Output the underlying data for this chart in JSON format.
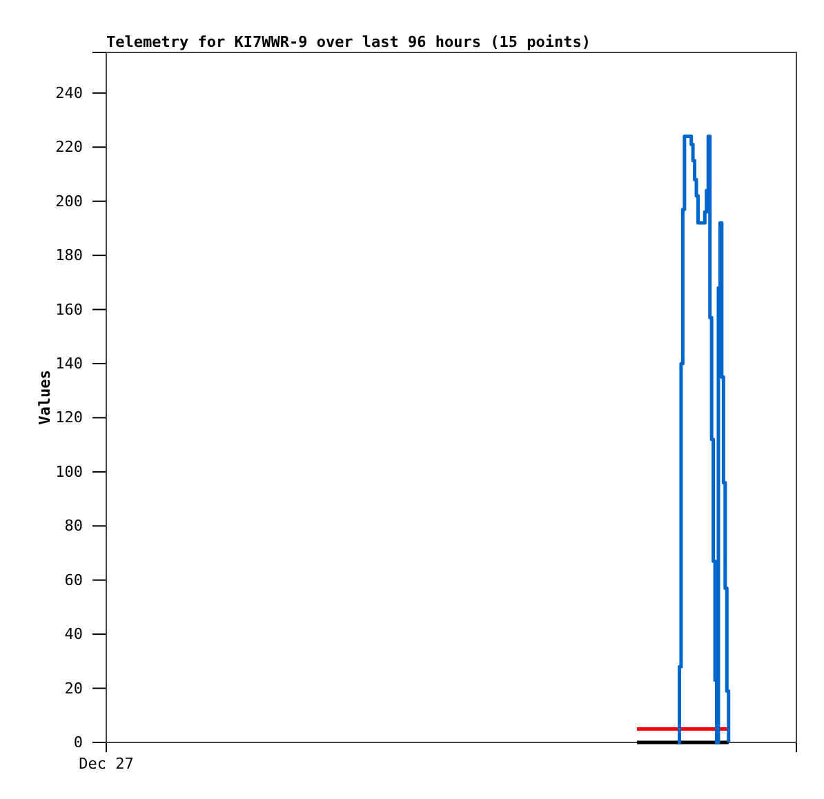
{
  "chart_data": {
    "type": "step",
    "title": "Telemetry for KI7WWR-9 over last 96 hours (15 points)",
    "ylabel": "Values",
    "categories": [
      "Dec 27",
      null,
      null,
      null,
      null,
      null,
      null,
      null,
      null,
      null,
      null,
      null,
      null,
      null,
      null,
      null,
      null,
      null,
      null,
      null,
      null,
      null,
      null,
      null,
      null,
      null,
      null,
      null,
      null,
      null,
      null,
      null,
      null,
      null,
      null,
      null,
      null,
      null,
      null,
      null,
      null,
      null,
      null,
      null,
      null,
      null,
      null,
      null,
      null,
      null,
      null,
      null,
      null,
      null,
      null,
      null,
      null,
      null,
      null,
      null,
      null,
      null,
      null,
      null,
      null,
      null,
      null,
      null,
      null,
      null,
      null,
      null,
      null,
      null,
      null,
      null,
      null,
      null,
      null,
      null,
      null,
      null,
      null,
      null,
      null,
      null,
      null,
      null,
      null,
      null,
      null,
      null,
      null,
      null,
      null,
      null,
      null,
      null,
      null,
      null,
      null,
      null,
      null,
      null,
      null,
      null,
      null,
      null,
      null,
      null,
      null,
      null,
      null,
      null,
      null,
      null,
      null,
      null,
      null,
      null,
      null,
      null,
      null,
      null,
      null,
      null,
      null,
      null,
      null,
      null,
      null,
      null,
      null,
      null,
      null,
      null,
      null,
      null,
      null,
      null,
      null,
      null,
      null,
      null,
      null,
      null,
      null,
      null,
      null,
      null,
      null,
      null,
      null,
      null,
      null,
      null,
      null,
      null,
      null,
      null,
      null,
      null,
      null,
      null,
      null,
      null,
      null,
      null,
      null,
      null,
      null,
      null,
      null,
      null,
      null,
      null,
      null,
      null,
      null,
      null,
      null,
      null,
      null,
      null,
      null,
      null,
      null,
      null,
      null,
      null,
      null,
      null,
      null,
      null,
      null,
      null,
      null,
      null,
      null,
      null,
      null,
      null,
      null,
      null,
      null,
      null,
      null,
      null,
      null,
      null,
      null,
      null,
      null,
      null,
      null,
      null,
      null,
      null,
      null,
      null,
      null,
      null,
      null,
      null,
      null,
      null,
      null,
      null,
      null,
      null,
      null,
      null,
      null,
      null,
      null,
      null,
      null,
      null,
      null,
      null,
      null,
      null,
      null,
      null,
      null,
      null,
      null,
      null,
      null,
      null,
      null,
      null,
      null,
      null,
      null,
      null,
      null,
      null,
      null,
      null,
      null,
      null,
      null,
      null,
      null,
      null,
      null,
      null,
      null,
      null,
      null,
      null,
      null,
      null,
      null,
      null,
      null,
      null,
      null,
      null,
      null,
      null,
      null,
      null,
      null,
      null,
      null,
      null,
      null,
      null,
      null,
      null,
      null,
      null,
      null,
      null,
      null,
      null,
      null,
      null,
      null,
      null,
      null,
      null,
      null,
      null,
      null,
      null,
      null,
      null,
      null,
      null,
      null,
      null,
      null,
      null,
      null,
      null,
      null,
      null,
      null,
      null,
      null,
      null,
      null,
      null,
      null,
      null,
      null,
      null,
      null,
      null,
      null,
      null,
      null,
      null,
      null,
      null,
      null,
      null,
      null,
      null,
      null,
      null,
      null,
      null,
      null,
      null,
      null,
      null,
      null,
      null,
      null,
      null,
      null,
      null,
      null,
      null,
      null,
      null,
      null,
      null,
      null,
      null,
      null,
      null,
      null,
      null,
      null,
      null,
      null,
      null,
      null,
      null,
      null,
      null,
      null,
      null,
      null,
      null,
      null,
      null,
      null,
      null,
      null,
      null,
      null,
      null,
      null,
      null,
      null,
      null,
      null,
      null,
      null,
      null,
      null,
      null,
      null,
      null,
      null,
      null,
      null,
      null,
      null,
      null,
      null,
      null
    ],
    "ylim": [
      0,
      255
    ],
    "yticks": [
      0,
      20,
      40,
      60,
      80,
      100,
      120,
      140,
      160,
      180,
      200,
      220,
      240
    ],
    "grid": false,
    "series": [
      {
        "type": "line",
        "color": "#000000",
        "values": [
          null,
          null,
          null,
          null,
          null,
          null,
          null,
          null,
          null,
          null,
          null,
          null,
          null,
          null,
          null,
          null,
          null,
          null,
          null,
          null,
          null,
          null,
          null,
          null,
          null,
          null,
          null,
          null,
          null,
          null,
          null,
          null,
          null,
          null,
          null,
          null,
          null,
          null,
          null,
          null,
          null,
          null,
          null,
          null,
          null,
          null,
          null,
          null,
          null,
          null,
          null,
          null,
          null,
          null,
          null,
          null,
          null,
          null,
          null,
          null,
          null,
          null,
          null,
          null,
          null,
          null,
          null,
          null,
          null,
          null,
          null,
          null,
          null,
          null,
          null,
          null,
          null,
          null,
          null,
          null,
          null,
          null,
          null,
          null,
          null,
          null,
          null,
          null,
          null,
          null,
          null,
          null,
          null,
          null,
          null,
          null,
          null,
          null,
          null,
          null,
          null,
          null,
          null,
          null,
          null,
          null,
          null,
          null,
          null,
          null,
          null,
          null,
          null,
          null,
          null,
          null,
          null,
          null,
          null,
          null,
          null,
          null,
          null,
          null,
          null,
          null,
          null,
          null,
          null,
          null,
          null,
          null,
          null,
          null,
          null,
          null,
          null,
          null,
          null,
          null,
          null,
          null,
          null,
          null,
          null,
          null,
          null,
          null,
          null,
          null,
          null,
          null,
          null,
          null,
          null,
          null,
          null,
          null,
          null,
          null,
          null,
          null,
          null,
          null,
          null,
          null,
          null,
          null,
          null,
          null,
          null,
          null,
          null,
          null,
          null,
          null,
          null,
          null,
          null,
          null,
          null,
          null,
          null,
          null,
          null,
          null,
          null,
          null,
          null,
          null,
          null,
          null,
          null,
          null,
          null,
          null,
          null,
          null,
          null,
          null,
          null,
          null,
          null,
          null,
          null,
          null,
          null,
          null,
          null,
          null,
          null,
          null,
          null,
          null,
          null,
          null,
          null,
          null,
          null,
          null,
          null,
          null,
          null,
          null,
          null,
          null,
          null,
          null,
          null,
          null,
          null,
          null,
          null,
          null,
          null,
          null,
          null,
          null,
          null,
          null,
          null,
          null,
          null,
          null,
          null,
          null,
          null,
          null,
          null,
          null,
          null,
          null,
          null,
          null,
          null,
          null,
          null,
          null,
          null,
          null,
          null,
          null,
          null,
          null,
          null,
          null,
          null,
          null,
          null,
          null,
          null,
          null,
          null,
          null,
          null,
          null,
          null,
          null,
          null,
          null,
          null,
          null,
          null,
          null,
          null,
          null,
          null,
          null,
          null,
          null,
          null,
          null,
          null,
          null,
          null,
          null,
          null,
          null,
          null,
          null,
          null,
          null,
          null,
          null,
          null,
          null,
          null,
          null,
          null,
          null,
          null,
          null,
          null,
          0,
          0,
          0,
          0,
          0,
          0,
          0,
          0,
          0,
          0,
          0,
          0,
          0,
          0,
          0,
          0,
          0,
          0,
          0,
          0,
          0,
          0,
          0,
          0,
          0,
          0,
          0,
          0,
          0,
          0,
          0,
          0,
          0,
          0,
          0,
          0,
          0,
          0,
          0,
          0,
          0,
          0,
          0,
          0,
          0,
          0,
          0,
          0,
          0,
          0,
          0,
          0,
          0,
          0,
          0,
          null,
          null,
          null,
          null,
          null,
          null,
          null,
          null,
          null,
          null,
          null,
          null,
          null,
          null,
          null,
          null,
          null,
          null,
          null,
          null,
          null,
          null,
          null,
          null,
          null,
          null,
          null,
          null,
          null,
          null,
          null,
          null,
          null,
          null,
          null,
          null,
          null,
          null,
          null,
          null
        ]
      },
      {
        "type": "line",
        "color": "#ff0000",
        "values": [
          null,
          null,
          null,
          null,
          null,
          null,
          null,
          null,
          null,
          null,
          null,
          null,
          null,
          null,
          null,
          null,
          null,
          null,
          null,
          null,
          null,
          null,
          null,
          null,
          null,
          null,
          null,
          null,
          null,
          null,
          null,
          null,
          null,
          null,
          null,
          null,
          null,
          null,
          null,
          null,
          null,
          null,
          null,
          null,
          null,
          null,
          null,
          null,
          null,
          null,
          null,
          null,
          null,
          null,
          null,
          null,
          null,
          null,
          null,
          null,
          null,
          null,
          null,
          null,
          null,
          null,
          null,
          null,
          null,
          null,
          null,
          null,
          null,
          null,
          null,
          null,
          null,
          null,
          null,
          null,
          null,
          null,
          null,
          null,
          null,
          null,
          null,
          null,
          null,
          null,
          null,
          null,
          null,
          null,
          null,
          null,
          null,
          null,
          null,
          null,
          null,
          null,
          null,
          null,
          null,
          null,
          null,
          null,
          null,
          null,
          null,
          null,
          null,
          null,
          null,
          null,
          null,
          null,
          null,
          null,
          null,
          null,
          null,
          null,
          null,
          null,
          null,
          null,
          null,
          null,
          null,
          null,
          null,
          null,
          null,
          null,
          null,
          null,
          null,
          null,
          null,
          null,
          null,
          null,
          null,
          null,
          null,
          null,
          null,
          null,
          null,
          null,
          null,
          null,
          null,
          null,
          null,
          null,
          null,
          null,
          null,
          null,
          null,
          null,
          null,
          null,
          null,
          null,
          null,
          null,
          null,
          null,
          null,
          null,
          null,
          null,
          null,
          null,
          null,
          null,
          null,
          null,
          null,
          null,
          null,
          null,
          null,
          null,
          null,
          null,
          null,
          null,
          null,
          null,
          null,
          null,
          null,
          null,
          null,
          null,
          null,
          null,
          null,
          null,
          null,
          null,
          null,
          null,
          null,
          null,
          null,
          null,
          null,
          null,
          null,
          null,
          null,
          null,
          null,
          null,
          null,
          null,
          null,
          null,
          null,
          null,
          null,
          null,
          null,
          null,
          null,
          null,
          null,
          null,
          null,
          null,
          null,
          null,
          null,
          null,
          null,
          null,
          null,
          null,
          null,
          null,
          null,
          null,
          null,
          null,
          null,
          null,
          null,
          null,
          null,
          null,
          null,
          null,
          null,
          null,
          null,
          null,
          null,
          null,
          null,
          null,
          null,
          null,
          null,
          null,
          null,
          null,
          null,
          null,
          null,
          null,
          null,
          null,
          null,
          null,
          null,
          null,
          null,
          null,
          null,
          null,
          null,
          null,
          null,
          null,
          null,
          null,
          null,
          null,
          null,
          null,
          null,
          null,
          null,
          null,
          null,
          null,
          null,
          null,
          null,
          null,
          null,
          null,
          null,
          null,
          null,
          null,
          null,
          5,
          5,
          5,
          5,
          5,
          5,
          5,
          5,
          5,
          5,
          5,
          5,
          5,
          5,
          5,
          5,
          5,
          5,
          5,
          5,
          5,
          5,
          5,
          5,
          5,
          5,
          5,
          5,
          5,
          5,
          5,
          5,
          5,
          5,
          5,
          5,
          5,
          5,
          5,
          5,
          5,
          5,
          5,
          5,
          5,
          5,
          5,
          5,
          5,
          5,
          5,
          5,
          5,
          5,
          5,
          null,
          null,
          null,
          null,
          null,
          null,
          null,
          null,
          null,
          null,
          null,
          null,
          null,
          null,
          null,
          null,
          null,
          null,
          null,
          null,
          null,
          null,
          null,
          null,
          null,
          null,
          null,
          null,
          null,
          null,
          null,
          null,
          null,
          null,
          null,
          null,
          null,
          null,
          null,
          null
        ]
      },
      {
        "type": "step",
        "color": "#0066cc",
        "values": [
          null,
          null,
          null,
          null,
          null,
          null,
          null,
          null,
          null,
          null,
          null,
          null,
          null,
          null,
          null,
          null,
          null,
          null,
          null,
          null,
          null,
          null,
          null,
          null,
          null,
          null,
          null,
          null,
          null,
          null,
          null,
          null,
          null,
          null,
          null,
          null,
          null,
          null,
          null,
          null,
          null,
          null,
          null,
          null,
          null,
          null,
          null,
          null,
          null,
          null,
          null,
          null,
          null,
          null,
          null,
          null,
          null,
          null,
          null,
          null,
          null,
          null,
          null,
          null,
          null,
          null,
          null,
          null,
          null,
          null,
          null,
          null,
          null,
          null,
          null,
          null,
          null,
          null,
          null,
          null,
          null,
          null,
          null,
          null,
          null,
          null,
          null,
          null,
          null,
          null,
          null,
          null,
          null,
          null,
          null,
          null,
          null,
          null,
          null,
          null,
          null,
          null,
          null,
          null,
          null,
          null,
          null,
          null,
          null,
          null,
          null,
          null,
          null,
          null,
          null,
          null,
          null,
          null,
          null,
          null,
          null,
          null,
          null,
          null,
          null,
          null,
          null,
          null,
          null,
          null,
          null,
          null,
          null,
          null,
          null,
          null,
          null,
          null,
          null,
          null,
          null,
          null,
          null,
          null,
          null,
          null,
          null,
          null,
          null,
          null,
          null,
          null,
          null,
          null,
          null,
          null,
          null,
          null,
          null,
          null,
          null,
          null,
          null,
          null,
          null,
          null,
          null,
          null,
          null,
          null,
          null,
          null,
          null,
          null,
          null,
          null,
          null,
          null,
          null,
          null,
          null,
          null,
          null,
          null,
          null,
          null,
          null,
          null,
          null,
          null,
          null,
          null,
          null,
          null,
          null,
          null,
          null,
          null,
          null,
          null,
          null,
          null,
          null,
          null,
          null,
          null,
          null,
          null,
          null,
          null,
          null,
          null,
          null,
          null,
          null,
          null,
          null,
          null,
          null,
          null,
          null,
          null,
          null,
          null,
          null,
          null,
          null,
          null,
          null,
          null,
          null,
          null,
          null,
          null,
          null,
          null,
          null,
          null,
          null,
          null,
          null,
          null,
          null,
          null,
          null,
          null,
          null,
          null,
          null,
          null,
          null,
          null,
          null,
          null,
          null,
          null,
          null,
          null,
          null,
          null,
          null,
          null,
          null,
          null,
          null,
          null,
          null,
          null,
          null,
          null,
          null,
          null,
          null,
          null,
          null,
          null,
          null,
          null,
          null,
          null,
          null,
          null,
          null,
          null,
          null,
          null,
          null,
          null,
          null,
          null,
          null,
          null,
          null,
          null,
          null,
          null,
          null,
          null,
          null,
          null,
          null,
          null,
          null,
          null,
          null,
          null,
          null,
          null,
          null,
          null,
          null,
          null,
          null,
          null,
          null,
          null,
          null,
          null,
          null,
          null,
          null,
          null,
          null,
          null,
          null,
          null,
          null,
          null,
          null,
          null,
          null,
          null,
          null,
          null,
          null,
          null,
          null,
          0,
          28,
          140,
          197,
          224,
          224,
          224,
          224,
          221,
          215,
          208,
          202,
          192,
          192,
          192,
          192,
          196,
          204,
          224,
          157,
          112,
          67,
          23,
          0,
          168,
          192,
          135,
          96,
          57,
          19,
          0,
          null,
          null,
          null,
          null,
          null,
          null,
          null,
          null,
          null,
          null,
          null,
          null,
          null,
          null,
          null,
          null,
          null,
          null,
          null,
          null,
          null,
          null,
          null,
          null,
          null,
          null,
          null,
          null,
          null,
          null,
          null,
          null,
          null,
          null,
          null,
          null,
          null,
          null,
          null,
          null
        ]
      }
    ]
  }
}
